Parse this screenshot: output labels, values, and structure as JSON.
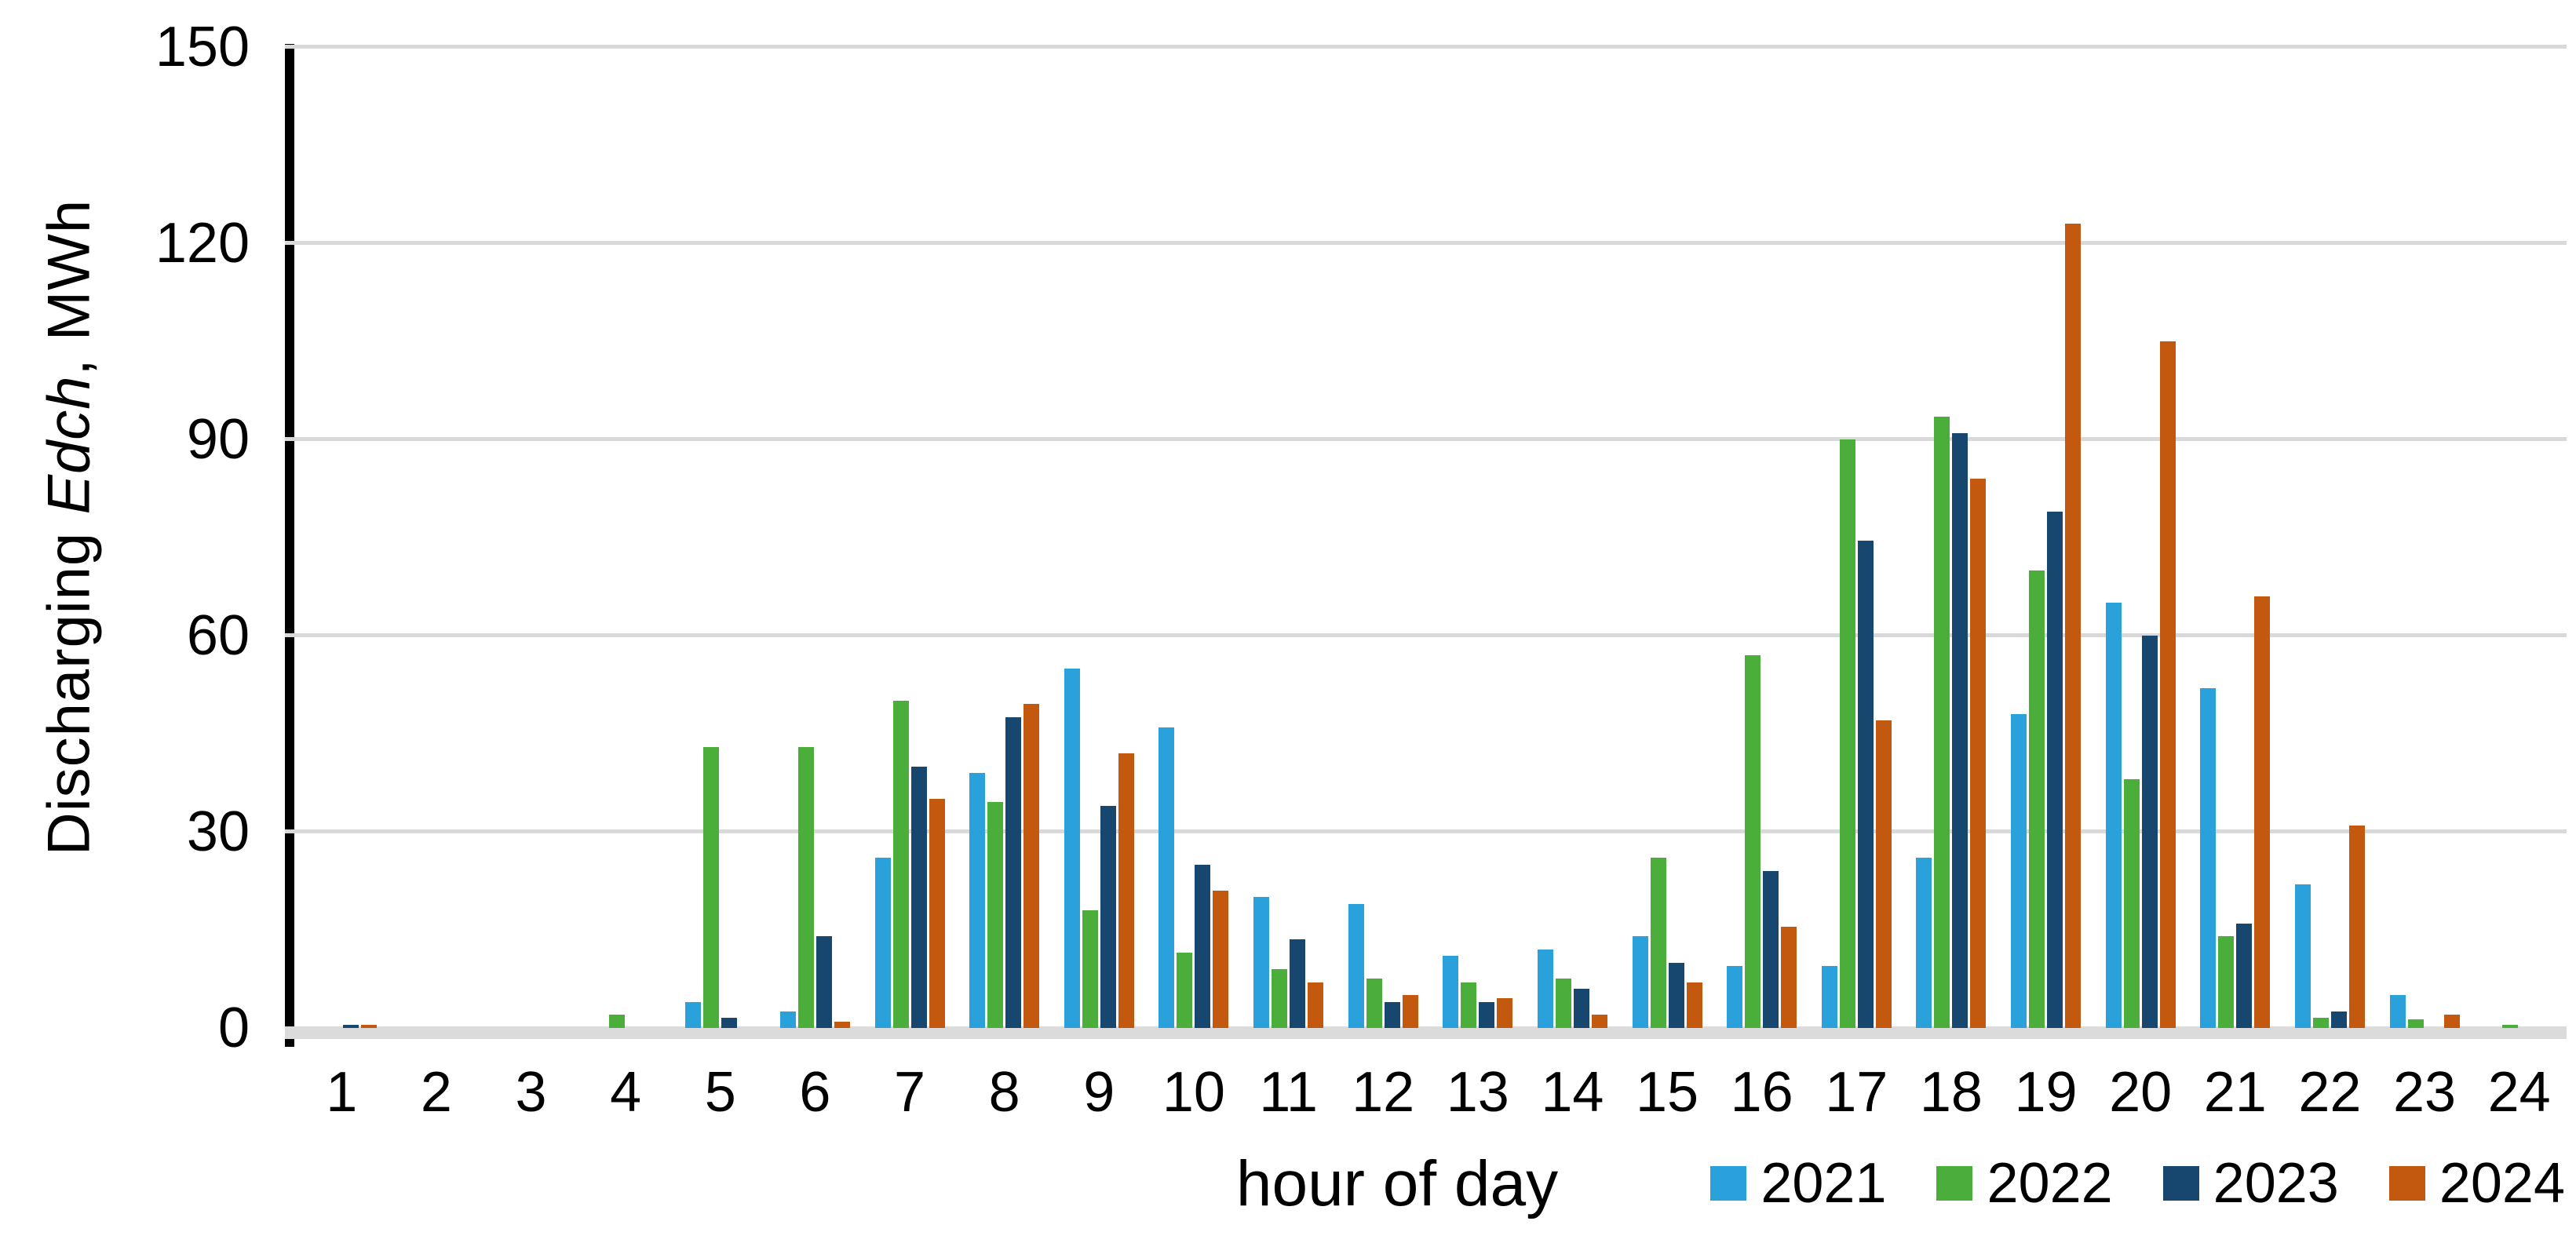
{
  "chart_data": {
    "type": "bar",
    "title": "",
    "xlabel": "hour of day",
    "ylabel": "Discharging Edch, MWh",
    "ylabel_parts": {
      "prefix": "Discharging ",
      "italic": "Edch",
      "suffix": ", MWh"
    },
    "categories": [
      1,
      2,
      3,
      4,
      5,
      6,
      7,
      8,
      9,
      10,
      11,
      12,
      13,
      14,
      15,
      16,
      17,
      18,
      19,
      20,
      21,
      22,
      23,
      24
    ],
    "series": [
      {
        "name": "2021",
        "color": "#2AA1DB",
        "values": [
          0,
          0,
          0,
          0,
          4,
          2.5,
          26,
          39,
          55,
          46,
          20,
          19,
          11,
          12,
          14,
          9.5,
          9.5,
          26,
          48,
          65,
          52,
          22,
          5,
          0
        ]
      },
      {
        "name": "2022",
        "color": "#4BAE3B",
        "values": [
          0,
          0,
          0,
          2,
          43,
          43,
          50,
          34.5,
          18,
          11.5,
          9,
          7.5,
          7,
          7.5,
          26,
          57,
          90,
          93.5,
          70,
          38,
          14,
          1.5,
          1.3,
          0.5
        ]
      },
      {
        "name": "2023",
        "color": "#17476F",
        "values": [
          0.5,
          0,
          0,
          0,
          1.5,
          14,
          40,
          47.5,
          34,
          25,
          13.5,
          4,
          4,
          6,
          10,
          24,
          74.5,
          91,
          79,
          60,
          16,
          2.5,
          0,
          0
        ]
      },
      {
        "name": "2024",
        "color": "#C2590F",
        "values": [
          0.5,
          0,
          0,
          0,
          0,
          1,
          35,
          49.5,
          42,
          21,
          7,
          5,
          4.5,
          2,
          7,
          15.5,
          47,
          84,
          123,
          105,
          66,
          31,
          2,
          0
        ]
      }
    ],
    "ylim": [
      0,
      150
    ],
    "yticks": [
      0,
      30,
      60,
      90,
      120,
      150
    ],
    "grid": true,
    "legend_position": "bottom-right",
    "gridline_color": "#D9D9D9",
    "axis_color": "#000000"
  }
}
